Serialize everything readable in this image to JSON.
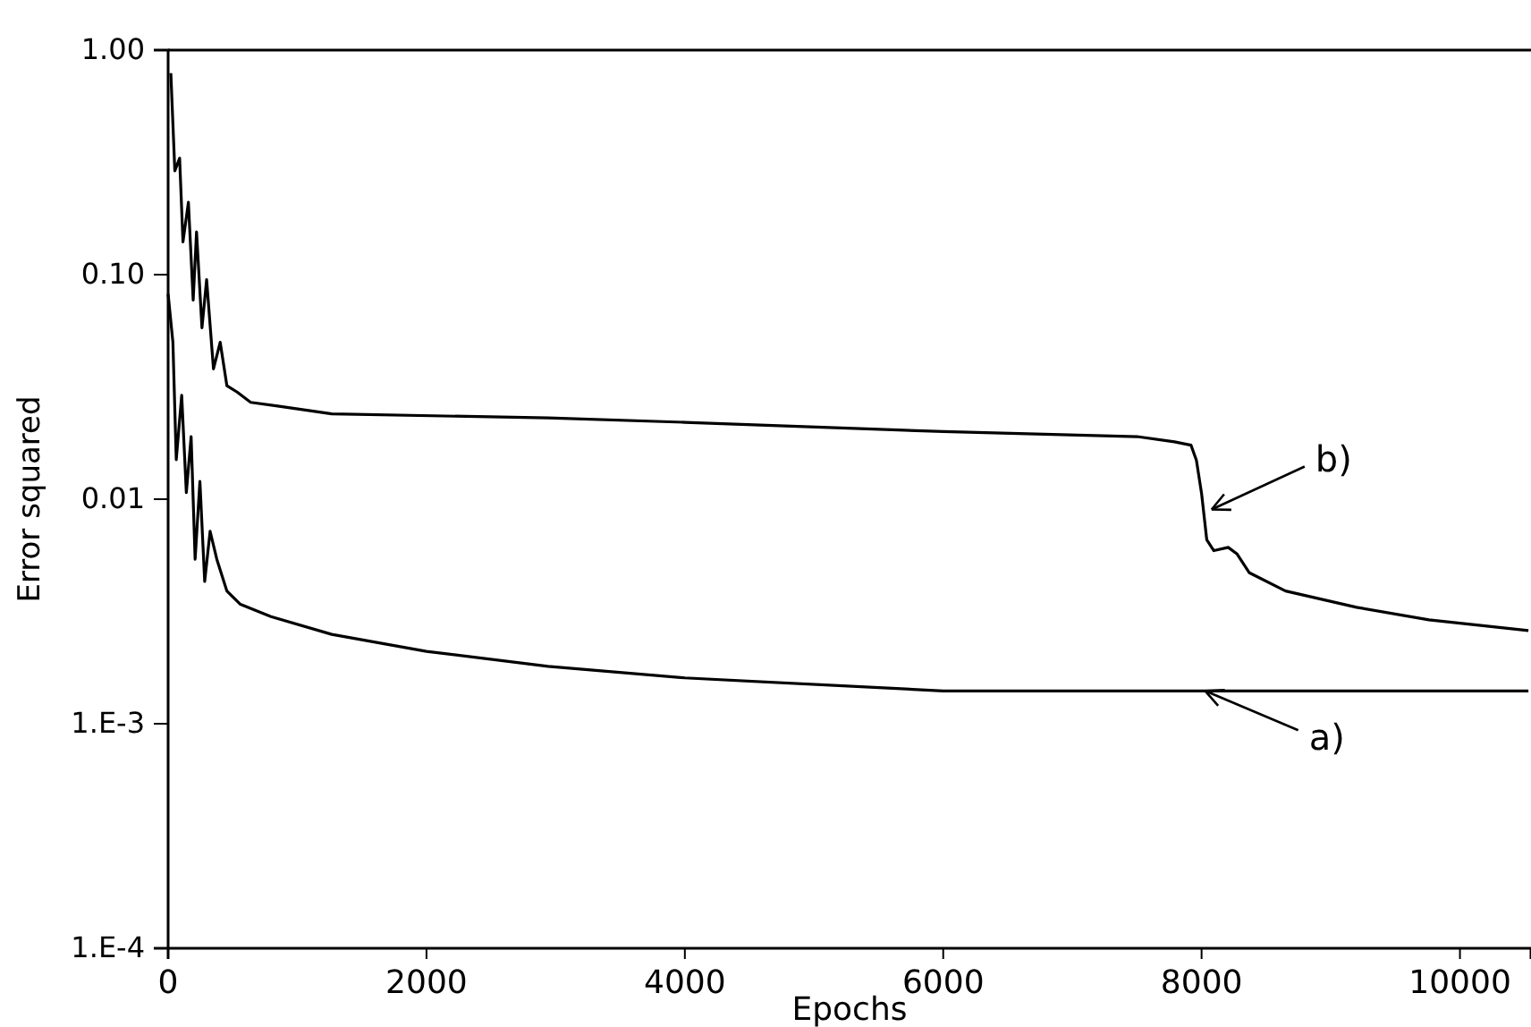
{
  "chart_data": {
    "type": "line",
    "xlabel": "Epochs",
    "ylabel": "Error squared",
    "log": "y",
    "grid": false,
    "marker": "none",
    "line_style": "solid",
    "xlim": [
      0,
      10550
    ],
    "xticks": [
      0,
      2000,
      4000,
      6000,
      8000,
      10000
    ],
    "ylim": [
      0.0001,
      1
    ],
    "yticks": [
      {
        "value": 1,
        "label": "1.00"
      },
      {
        "value": 0.1,
        "label": "0.10"
      },
      {
        "value": 0.01,
        "label": "0.01"
      },
      {
        "value": 0.001,
        "label": "1.E-3"
      },
      {
        "value": 0.0001,
        "label": "1.E-4"
      }
    ],
    "series": [
      {
        "color": "#000000",
        "x": [
          21,
          52,
          89,
          115,
          157,
          194,
          220,
          262,
          298,
          351,
          403,
          455,
          534,
          639,
          848,
          1267,
          2942,
          4000,
          6000,
          7500,
          7790,
          7918,
          7960,
          8000,
          8040,
          8095,
          8206,
          8275,
          8370,
          8650,
          9200,
          9760,
          10530
        ],
        "values": [
          0.79,
          0.29,
          0.33,
          0.14,
          0.21,
          0.077,
          0.155,
          0.058,
          0.095,
          0.038,
          0.05,
          0.032,
          0.03,
          0.027,
          0.026,
          0.024,
          0.023,
          0.022,
          0.02,
          0.019,
          0.018,
          0.0174,
          0.0149,
          0.0106,
          0.0066,
          0.0059,
          0.0061,
          0.0057,
          0.0047,
          0.0039,
          0.0033,
          0.0029,
          0.0026
        ]
      },
      {
        "color": "#000000",
        "x": [
          0,
          37,
          63,
          105,
          141,
          178,
          209,
          246,
          283,
          325,
          377,
          455,
          560,
          796,
          1267,
          2000,
          2942,
          4000,
          6000,
          8000,
          10530
        ],
        "values": [
          0.082,
          0.05,
          0.015,
          0.029,
          0.0107,
          0.019,
          0.0054,
          0.012,
          0.0043,
          0.0072,
          0.0054,
          0.0039,
          0.0034,
          0.003,
          0.0025,
          0.0021,
          0.0018,
          0.0016,
          0.0014,
          0.0014,
          0.0014
        ]
      }
    ],
    "annotations": [
      {
        "text": "b)",
        "x": 8050,
        "y": 0.009
      },
      {
        "text": "a)",
        "x": 8000,
        "y": 0.0014
      }
    ]
  }
}
